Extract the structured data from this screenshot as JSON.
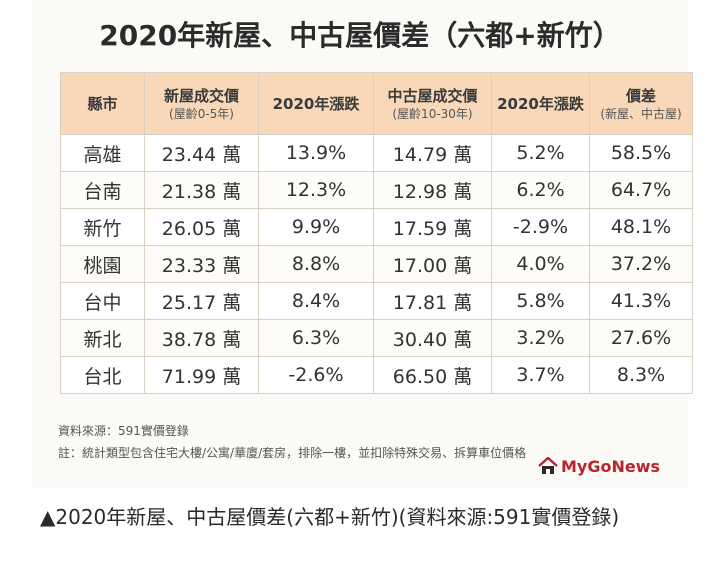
{
  "infographic": {
    "title": "2020年新屋、中古屋價差（六都+新竹）",
    "headers": [
      {
        "main": "縣市",
        "sub": ""
      },
      {
        "main": "新屋成交價",
        "sub": "(屋齡0-5年)"
      },
      {
        "main": "2020年漲跌",
        "sub": ""
      },
      {
        "main": "中古屋成交價",
        "sub": "(屋齡10-30年)"
      },
      {
        "main": "2020年漲跌",
        "sub": ""
      },
      {
        "main": "價差",
        "sub": "(新屋、中古屋)"
      }
    ],
    "rows": [
      [
        "高雄",
        "23.44 萬",
        "13.9%",
        "14.79 萬",
        "5.2%",
        "58.5%"
      ],
      [
        "台南",
        "21.38 萬",
        "12.3%",
        "12.98 萬",
        "6.2%",
        "64.7%"
      ],
      [
        "新竹",
        "26.05 萬",
        "9.9%",
        "17.59 萬",
        "-2.9%",
        "48.1%"
      ],
      [
        "桃園",
        "23.33 萬",
        "8.8%",
        "17.00 萬",
        "4.0%",
        "37.2%"
      ],
      [
        "台中",
        "25.17 萬",
        "8.4%",
        "17.81 萬",
        "5.8%",
        "41.3%"
      ],
      [
        "新北",
        "38.78 萬",
        "6.3%",
        "30.40 萬",
        "3.2%",
        "27.6%"
      ],
      [
        "台北",
        "71.99 萬",
        "-2.6%",
        "66.50 萬",
        "3.7%",
        "8.3%"
      ]
    ],
    "source_note": "資料來源：591實價登錄",
    "footnote": "註：統計類型包含住宅大樓/公寓/華廈/套房，排除一樓，並扣除特殊交易、拆算車位價格",
    "logo_text": "MyGoNews",
    "logo_color": "#b7262e",
    "header_color": "#f8d8b8"
  },
  "caption": "▲2020年新屋、中古屋價差(六都+新竹)(資料來源:591實價登錄)"
}
